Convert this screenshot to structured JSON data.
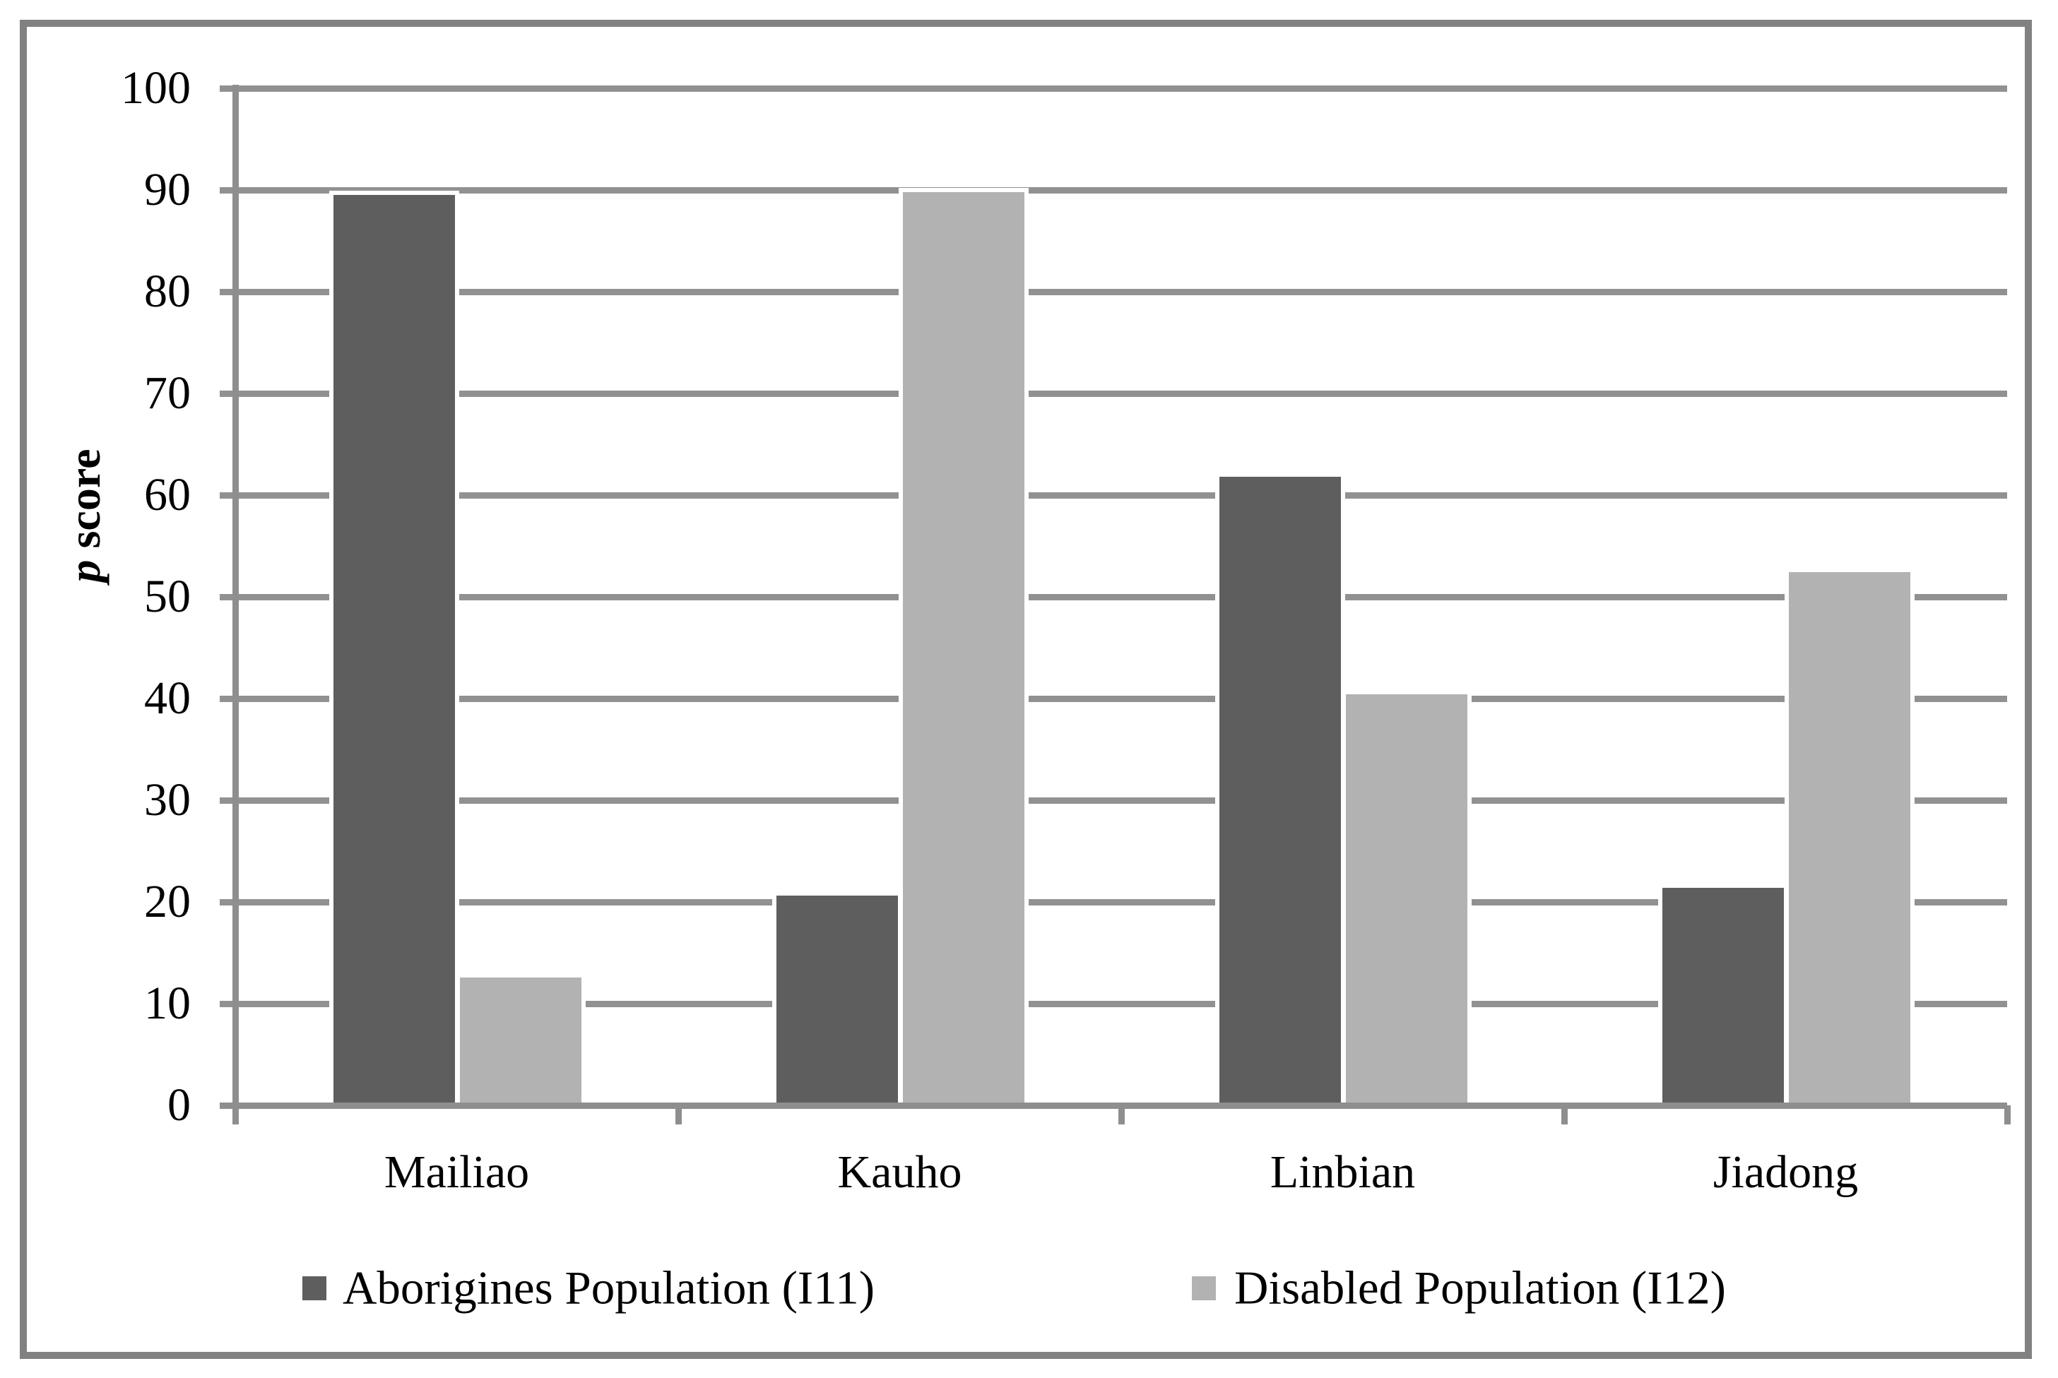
{
  "chart_data": {
    "type": "bar",
    "title": "",
    "categories": [
      "Mailiao",
      "Kauho",
      "Linbian",
      "Jiadong"
    ],
    "series": [
      {
        "name": "Aborigines Population (I11)",
        "color": "#5e5e5e",
        "values": [
          89.5,
          20.6,
          61.8,
          21.4
        ]
      },
      {
        "name": "Disabled Population (I12)",
        "color": "#b2b2b2",
        "values": [
          12.6,
          89.8,
          40.4,
          52.4
        ]
      }
    ],
    "xlabel": "",
    "ylabel": "p score",
    "ylabel_parts": [
      {
        "text": "p",
        "italic": true
      },
      {
        "text": " score",
        "italic": false
      }
    ],
    "ylim": [
      0,
      100
    ],
    "ytick_step": 10,
    "ytick_labels": [
      "0",
      "10",
      "20",
      "30",
      "40",
      "50",
      "60",
      "70",
      "80",
      "90",
      "100"
    ],
    "grid": true,
    "legend_position": "bottom",
    "colors": {
      "gridline": "#919191",
      "axis": "#8e8e8e",
      "figure_border": "#818181",
      "text": "#000000",
      "background": "#ffffff"
    }
  }
}
